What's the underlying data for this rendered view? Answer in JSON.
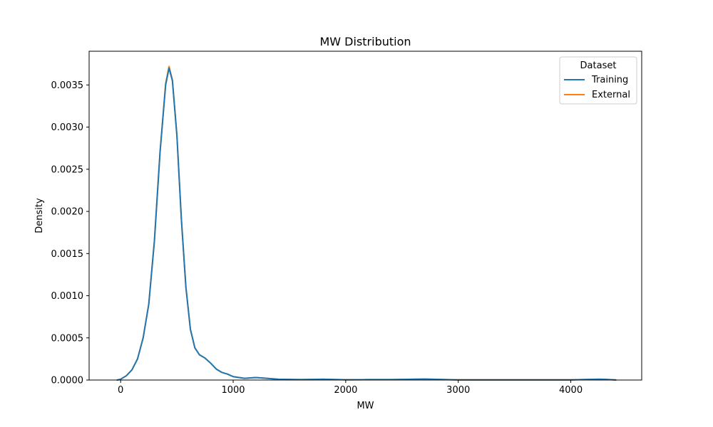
{
  "colors": {
    "training": "#1f77b4",
    "external": "#ff7f0e",
    "axis": "#000000",
    "legend_border": "#cccccc"
  },
  "chart_data": {
    "type": "line",
    "title": "MW Distribution",
    "xlabel": "MW",
    "ylabel": "Density",
    "xlim": [
      -280,
      4630
    ],
    "ylim": [
      0,
      0.0039
    ],
    "grid": false,
    "legend": {
      "title": "Dataset",
      "placement": "top-right"
    },
    "xticks": [
      {
        "value": 0,
        "label": "0"
      },
      {
        "value": 1000,
        "label": "1000"
      },
      {
        "value": 2000,
        "label": "2000"
      },
      {
        "value": 3000,
        "label": "3000"
      },
      {
        "value": 4000,
        "label": "4000"
      }
    ],
    "yticks": [
      {
        "value": 0,
        "label": "0.0000"
      },
      {
        "value": 0.0005,
        "label": "0.0005"
      },
      {
        "value": 0.001,
        "label": "0.0010"
      },
      {
        "value": 0.0015,
        "label": "0.0015"
      },
      {
        "value": 0.002,
        "label": "0.0020"
      },
      {
        "value": 0.0025,
        "label": "0.0025"
      },
      {
        "value": 0.003,
        "label": "0.0030"
      },
      {
        "value": 0.0035,
        "label": "0.0035"
      }
    ],
    "series": [
      {
        "name": "Training",
        "color": "#1f77b4",
        "points": [
          [
            -30,
            0
          ],
          [
            0,
            1e-05
          ],
          [
            50,
            5e-05
          ],
          [
            100,
            0.00012
          ],
          [
            150,
            0.00025
          ],
          [
            200,
            0.0005
          ],
          [
            250,
            0.0009
          ],
          [
            300,
            0.00165
          ],
          [
            350,
            0.0027
          ],
          [
            400,
            0.0035
          ],
          [
            430,
            0.0037
          ],
          [
            460,
            0.00355
          ],
          [
            500,
            0.0029
          ],
          [
            540,
            0.0019
          ],
          [
            580,
            0.0011
          ],
          [
            620,
            0.0006
          ],
          [
            660,
            0.00038
          ],
          [
            700,
            0.0003
          ],
          [
            750,
            0.00026
          ],
          [
            800,
            0.0002
          ],
          [
            850,
            0.00013
          ],
          [
            900,
            9e-05
          ],
          [
            950,
            7e-05
          ],
          [
            1000,
            4e-05
          ],
          [
            1100,
            2e-05
          ],
          [
            1200,
            3e-05
          ],
          [
            1300,
            2e-05
          ],
          [
            1400,
            1e-05
          ],
          [
            1600,
            5e-06
          ],
          [
            1800,
            1e-05
          ],
          [
            2000,
            3e-06
          ],
          [
            2200,
            5e-06
          ],
          [
            2400,
            5e-06
          ],
          [
            2600,
            1e-05
          ],
          [
            2700,
            1.2e-05
          ],
          [
            2800,
            8e-06
          ],
          [
            3000,
            2e-06
          ],
          [
            3500,
            2e-06
          ],
          [
            4000,
            2e-06
          ],
          [
            4200,
            8e-06
          ],
          [
            4250,
            1e-05
          ],
          [
            4300,
            8e-06
          ],
          [
            4400,
            1e-06
          ]
        ]
      },
      {
        "name": "External",
        "color": "#ff7f0e",
        "points": [
          [
            -30,
            0
          ],
          [
            0,
            1e-05
          ],
          [
            50,
            5e-05
          ],
          [
            100,
            0.00012
          ],
          [
            150,
            0.00025
          ],
          [
            200,
            0.0005
          ],
          [
            250,
            0.0009
          ],
          [
            300,
            0.00165
          ],
          [
            350,
            0.0027
          ],
          [
            400,
            0.00352
          ],
          [
            430,
            0.00372
          ],
          [
            460,
            0.00356
          ],
          [
            500,
            0.0029
          ],
          [
            540,
            0.0019
          ],
          [
            580,
            0.0011
          ],
          [
            620,
            0.0006
          ],
          [
            660,
            0.00038
          ],
          [
            700,
            0.0003
          ],
          [
            750,
            0.00026
          ],
          [
            800,
            0.0002
          ],
          [
            850,
            0.00013
          ],
          [
            900,
            9e-05
          ],
          [
            950,
            7e-05
          ],
          [
            1000,
            4e-05
          ],
          [
            1100,
            2e-05
          ],
          [
            1200,
            3e-05
          ],
          [
            1300,
            2e-05
          ],
          [
            1400,
            1e-05
          ],
          [
            1600,
            5e-06
          ],
          [
            1800,
            1e-05
          ],
          [
            2000,
            3e-06
          ],
          [
            2200,
            5e-06
          ],
          [
            2400,
            5e-06
          ],
          [
            2600,
            1e-05
          ],
          [
            2700,
            1.2e-05
          ],
          [
            2800,
            8e-06
          ],
          [
            3000,
            2e-06
          ],
          [
            3500,
            2e-06
          ],
          [
            4000,
            2e-06
          ],
          [
            4200,
            8e-06
          ],
          [
            4250,
            1e-05
          ],
          [
            4300,
            8e-06
          ],
          [
            4400,
            1e-06
          ]
        ]
      }
    ]
  }
}
